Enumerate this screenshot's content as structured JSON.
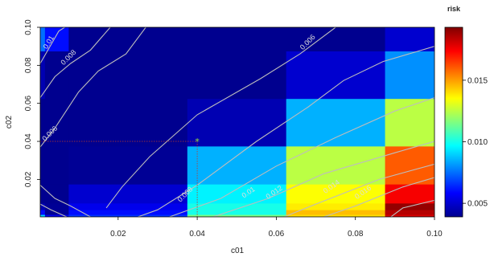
{
  "chart_data": {
    "type": "heatmap",
    "title": "",
    "xlabel": "c01",
    "ylabel": "c02",
    "xlim": [
      0.0003,
      0.1
    ],
    "ylim": [
      0.0003,
      0.1
    ],
    "x_ticks": [
      {
        "value": 0.02,
        "label": "0.02"
      },
      {
        "value": 0.04,
        "label": "0.04"
      },
      {
        "value": 0.06,
        "label": "0.06"
      },
      {
        "value": 0.08,
        "label": "0.08"
      },
      {
        "value": 0.1,
        "label": "0.10"
      }
    ],
    "y_ticks": [
      {
        "value": 0.02,
        "label": "0.02"
      },
      {
        "value": 0.04,
        "label": "0.04"
      },
      {
        "value": 0.06,
        "label": "0.06"
      },
      {
        "value": 0.08,
        "label": "0.08"
      },
      {
        "value": 0.1,
        "label": "0.10"
      }
    ],
    "x_edges": [
      0.0003,
      0.0015,
      0.0075,
      0.0375,
      0.0625,
      0.0875,
      0.1
    ],
    "y_edges": [
      0.0003,
      0.0015,
      0.004,
      0.0075,
      0.0175,
      0.0375,
      0.0625,
      0.0875,
      0.1
    ],
    "z": [
      [
        0.009,
        0.0055,
        0.0066,
        0.0115,
        0.014,
        0.018
      ],
      [
        0.006,
        0.004,
        0.006,
        0.01,
        0.0145,
        0.0185
      ],
      [
        0.0045,
        0.004,
        0.0055,
        0.01,
        0.0138,
        0.019
      ],
      [
        0.0035,
        0.0035,
        0.005,
        0.0095,
        0.0135,
        0.0175
      ],
      [
        0.0025,
        0.003,
        0.004,
        0.0085,
        0.0125,
        0.016
      ],
      [
        0.003,
        0.003,
        0.0035,
        0.0045,
        0.0085,
        0.0125
      ],
      [
        0.0045,
        0.0035,
        0.003,
        0.0035,
        0.005,
        0.008
      ],
      [
        0.0075,
        0.006,
        0.003,
        0.003,
        0.0035,
        0.005
      ]
    ],
    "zlim": [
      0.0039,
      0.0193
    ],
    "legend": {
      "title": "risk",
      "position": "right",
      "ticks": [
        {
          "value": 0.005,
          "label": "0.005"
        },
        {
          "value": 0.01,
          "label": "0.010"
        },
        {
          "value": 0.015,
          "label": "0.015"
        }
      ]
    },
    "contours": [
      {
        "label": "0.01",
        "label_at": [
          0.0025,
          0.092
        ],
        "label_angle": -60,
        "points": [
          [
            0.0003,
            0.081
          ],
          [
            0.005,
            0.098
          ],
          [
            0.0065,
            0.1
          ]
        ]
      },
      {
        "label": "0.008",
        "label_at": [
          0.0075,
          0.084
        ],
        "label_angle": -45,
        "points": [
          [
            0.0003,
            0.063
          ],
          [
            0.004,
            0.074
          ],
          [
            0.008,
            0.081
          ],
          [
            0.013,
            0.088
          ],
          [
            0.018,
            0.1
          ]
        ]
      },
      {
        "label": "0.006",
        "label_at": [
          0.0028,
          0.044
        ],
        "label_angle": -45,
        "points": [
          [
            0.0003,
            0.037
          ],
          [
            0.004,
            0.047
          ],
          [
            0.01,
            0.066
          ],
          [
            0.015,
            0.077
          ],
          [
            0.022,
            0.086
          ],
          [
            0.027,
            0.1
          ]
        ]
      },
      {
        "label": "0.006",
        "label_at": [
          0.068,
          0.092
        ],
        "label_angle": -45,
        "points": [
          [
            0.017,
            0.005
          ],
          [
            0.021,
            0.016
          ],
          [
            0.028,
            0.032
          ],
          [
            0.04,
            0.054
          ],
          [
            0.056,
            0.073
          ],
          [
            0.066,
            0.086
          ],
          [
            0.075,
            0.1
          ]
        ]
      },
      {
        "label": "0.008",
        "label_at": [
          0.037,
          0.012
        ],
        "label_angle": -45,
        "points": [
          [
            0.025,
            0.0003
          ],
          [
            0.03,
            0.004
          ],
          [
            0.04,
            0.017
          ],
          [
            0.055,
            0.04
          ],
          [
            0.068,
            0.058
          ],
          [
            0.077,
            0.072
          ],
          [
            0.087,
            0.082
          ],
          [
            0.1,
            0.09
          ]
        ]
      },
      {
        "label": "0.01",
        "label_at": [
          0.053,
          0.013
        ],
        "label_angle": -35,
        "points": [
          [
            0.033,
            0.0003
          ],
          [
            0.046,
            0.01
          ],
          [
            0.06,
            0.027
          ],
          [
            0.075,
            0.042
          ],
          [
            0.09,
            0.056
          ],
          [
            0.1,
            0.063
          ]
        ]
      },
      {
        "label": "0.012",
        "label_at": [
          0.0595,
          0.013
        ],
        "label_angle": -35,
        "points": [
          [
            0.044,
            0.0003
          ],
          [
            0.058,
            0.01
          ],
          [
            0.072,
            0.023
          ],
          [
            0.09,
            0.034
          ],
          [
            0.1,
            0.04
          ]
        ]
      },
      {
        "label": "0.014",
        "label_at": [
          0.074,
          0.016
        ],
        "label_angle": -35,
        "points": [
          [
            0.062,
            0.0003
          ],
          [
            0.07,
            0.007
          ],
          [
            0.086,
            0.02
          ],
          [
            0.1,
            0.028
          ]
        ]
      },
      {
        "label": "0.016",
        "label_at": [
          0.082,
          0.013
        ],
        "label_angle": -35,
        "points": [
          [
            0.072,
            0.0003
          ],
          [
            0.08,
            0.006
          ],
          [
            0.092,
            0.016
          ],
          [
            0.1,
            0.021
          ]
        ]
      },
      {
        "label": "",
        "label_at": null,
        "label_angle": 0,
        "points": [
          [
            0.089,
            0.0003
          ],
          [
            0.092,
            0.005
          ],
          [
            0.1,
            0.009
          ]
        ]
      },
      {
        "label": "",
        "label_at": null,
        "label_angle": 0,
        "points": [
          [
            0.0003,
            0.017
          ],
          [
            0.004,
            0.01
          ],
          [
            0.008,
            0.006
          ],
          [
            0.013,
            0.0003
          ]
        ]
      },
      {
        "label": "",
        "label_at": null,
        "label_angle": 0,
        "points": [
          [
            0.0003,
            0.007
          ],
          [
            0.003,
            0.004
          ],
          [
            0.007,
            0.0003
          ]
        ]
      }
    ],
    "marker": {
      "x": 0.04,
      "y": 0.04,
      "color": "#9be23a"
    },
    "reference_lines": {
      "color": "#c0392b"
    }
  }
}
